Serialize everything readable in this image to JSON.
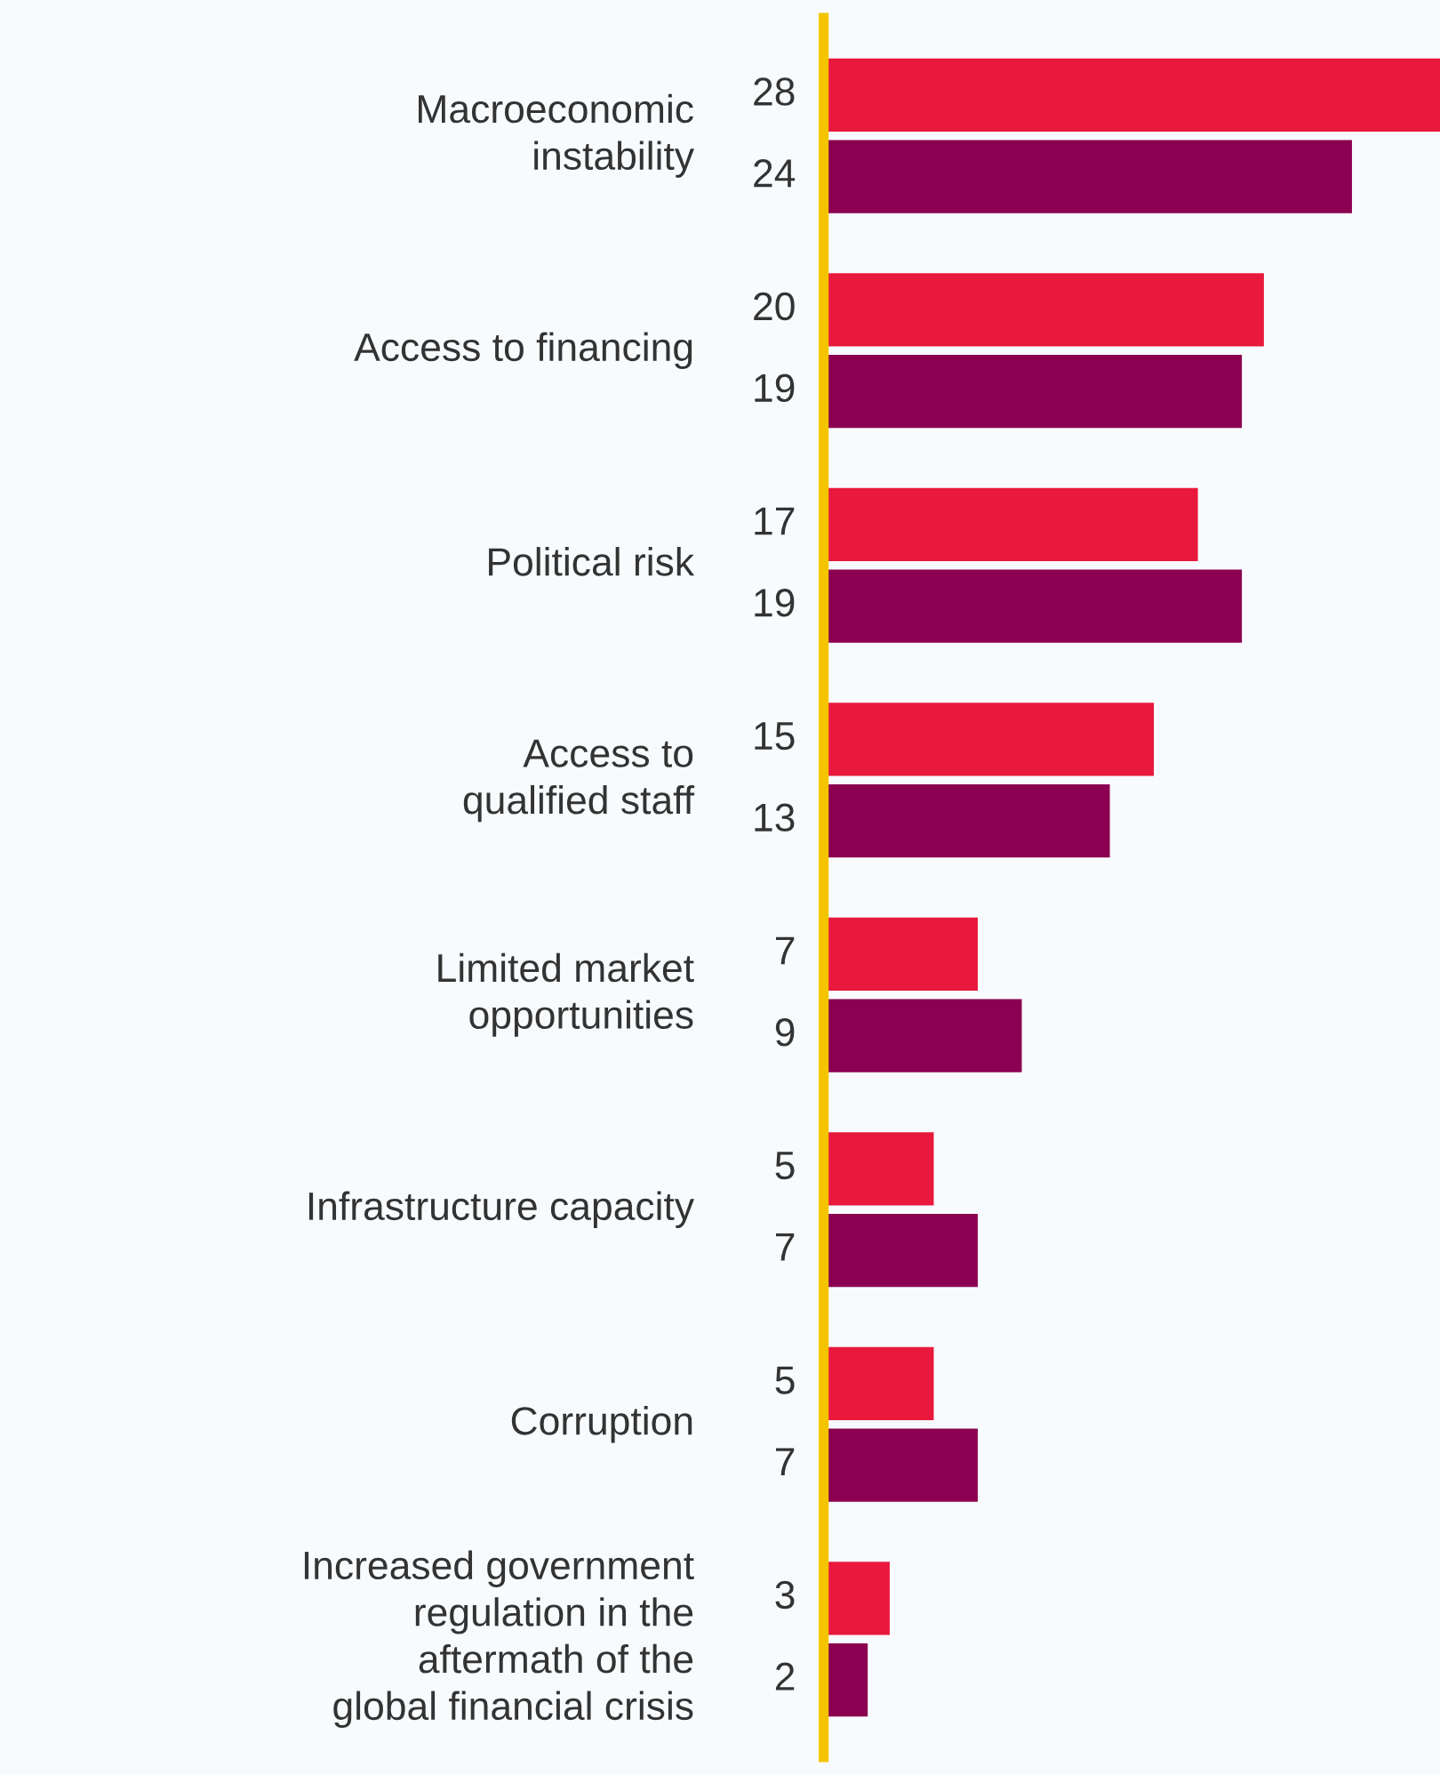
{
  "chart_data": {
    "type": "bar",
    "orientation": "horizontal",
    "data_labels": true,
    "xlim": [
      0,
      28
    ],
    "categories": [
      "Macroeconomic\ninstability",
      "Access to financing",
      "Political risk",
      "Access to\nqualified staff",
      "Limited market\nopportunities",
      "Infrastructure capacity",
      "Corruption",
      "Increased government\nregulation in the\naftermath of the\nglobal financial crisis"
    ],
    "series": [
      {
        "color": "#e8193c",
        "values": [
          28,
          20,
          17,
          15,
          7,
          5,
          5,
          3
        ]
      },
      {
        "color": "#8b0050",
        "values": [
          24,
          19,
          19,
          13,
          9,
          7,
          7,
          2
        ]
      }
    ]
  }
}
